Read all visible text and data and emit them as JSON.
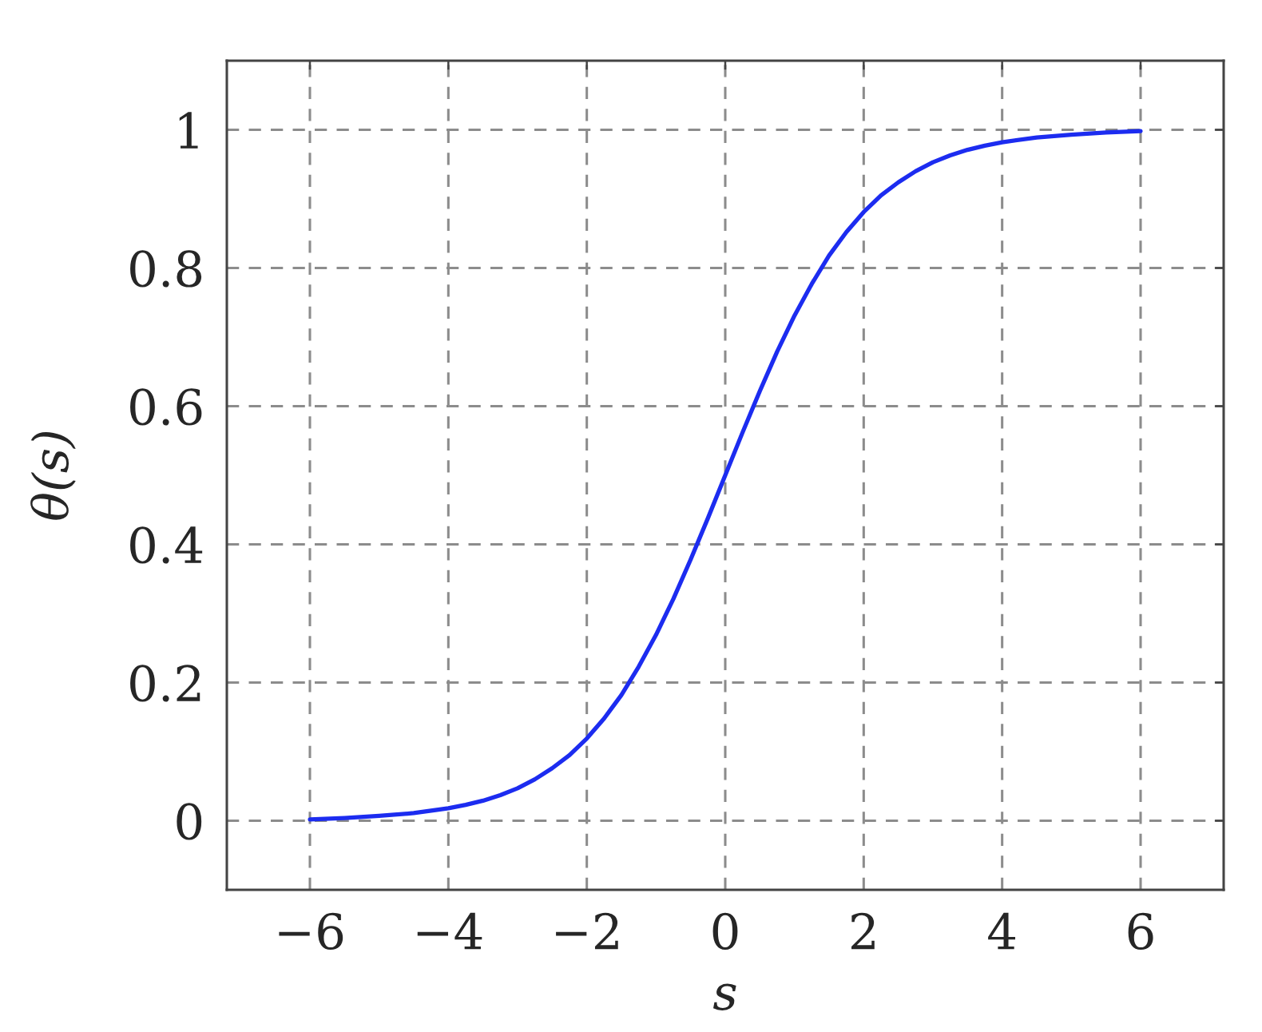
{
  "chart_data": {
    "type": "line",
    "xlabel": "s",
    "ylabel": "θ(s)",
    "x": [
      -6,
      -5.5,
      -5,
      -4.5,
      -4,
      -3.75,
      -3.5,
      -3.25,
      -3,
      -2.75,
      -2.5,
      -2.25,
      -2,
      -1.75,
      -1.5,
      -1.25,
      -1,
      -0.75,
      -0.5,
      -0.25,
      0,
      0.25,
      0.5,
      0.75,
      1,
      1.25,
      1.5,
      1.75,
      2,
      2.25,
      2.5,
      2.75,
      3,
      3.25,
      3.5,
      3.75,
      4,
      4.5,
      5,
      5.5,
      6
    ],
    "series": [
      {
        "color": "#1c2cf0",
        "values": [
          0.002,
          0.004,
          0.007,
          0.011,
          0.018,
          0.023,
          0.029,
          0.037,
          0.047,
          0.06,
          0.076,
          0.095,
          0.119,
          0.148,
          0.182,
          0.223,
          0.269,
          0.321,
          0.378,
          0.438,
          0.5,
          0.562,
          0.622,
          0.679,
          0.731,
          0.777,
          0.818,
          0.852,
          0.881,
          0.905,
          0.924,
          0.94,
          0.953,
          0.963,
          0.971,
          0.977,
          0.982,
          0.989,
          0.993,
          0.996,
          0.998
        ]
      }
    ],
    "xlim": [
      -7.2,
      7.2
    ],
    "ylim": [
      -0.1,
      1.1
    ],
    "xticks": [
      -6,
      -4,
      -2,
      0,
      2,
      4,
      6
    ],
    "yticks": [
      0,
      0.2,
      0.4,
      0.6,
      0.8,
      1
    ],
    "grid": true
  }
}
